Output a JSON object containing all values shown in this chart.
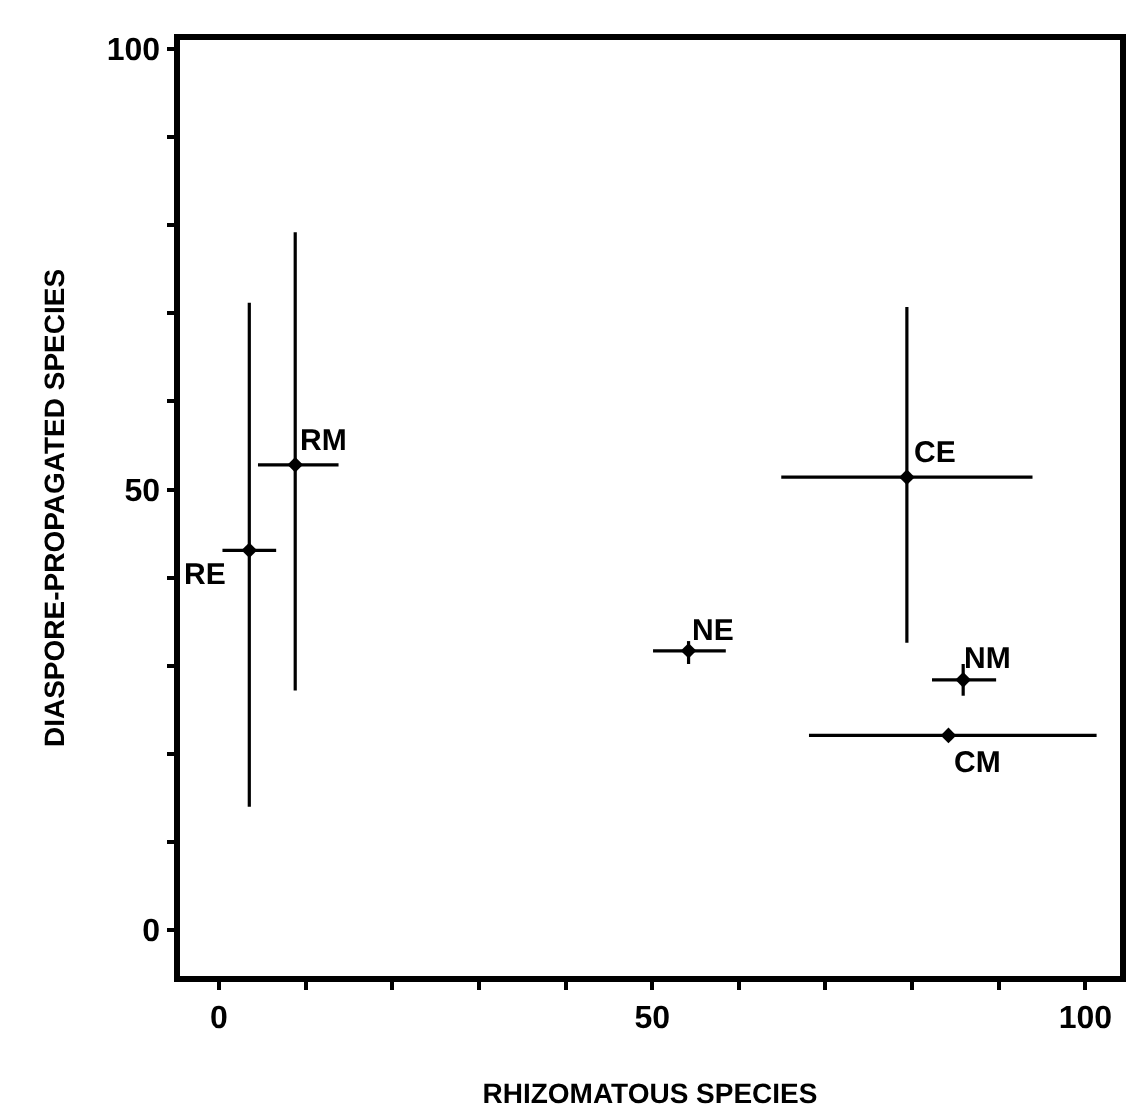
{
  "chart_data": {
    "type": "scatter",
    "xlabel": "RHIZOMATOUS SPECIES",
    "ylabel": "DIASPORE-PROPAGATED SPECIES",
    "x": [
      3.5,
      8.8,
      79.4,
      54.2,
      85.9,
      84.2
    ],
    "series": [
      {
        "color": "#000000",
        "values": [
          43.1,
          52.8,
          51.4,
          31.7,
          28.4,
          22.1
        ],
        "errors": [
          [
            14.0,
            71.2
          ],
          [
            27.2,
            79.2
          ],
          [
            32.6,
            70.7
          ],
          [
            30.2,
            32.8
          ],
          [
            26.6,
            30.2
          ],
          null
        ],
        "xerrors": [
          [
            0.4,
            6.6
          ],
          [
            4.5,
            13.8
          ],
          [
            64.9,
            93.9
          ],
          [
            50.1,
            58.5
          ],
          [
            82.3,
            89.7
          ],
          [
            68.1,
            101.3
          ]
        ]
      }
    ],
    "annotations": [
      {
        "text": "RE",
        "x": 3.5,
        "y": 43.1
      },
      {
        "text": "RM",
        "x": 8.8,
        "y": 52.8
      },
      {
        "text": "CE",
        "x": 79.4,
        "y": 51.4
      },
      {
        "text": "NE",
        "x": 54.2,
        "y": 31.7
      },
      {
        "text": "NM",
        "x": 85.9,
        "y": 28.4
      },
      {
        "text": "CM",
        "x": 84.2,
        "y": 22.1
      }
    ],
    "xlim": [
      -4.5,
      104
    ],
    "ylim": [
      -5.2,
      101
    ],
    "xticks": [
      0,
      {
        "value": 10,
        "label": null
      },
      {
        "value": 20,
        "label": null
      },
      {
        "value": 30,
        "label": null
      },
      {
        "value": 40,
        "label": null
      },
      50,
      {
        "value": 60,
        "label": null
      },
      {
        "value": 70,
        "label": null
      },
      {
        "value": 80,
        "label": null
      },
      {
        "value": 90,
        "label": null
      },
      100
    ],
    "yticks": [
      0,
      {
        "value": 10,
        "label": null
      },
      {
        "value": 20,
        "label": null
      },
      {
        "value": 30,
        "label": null
      },
      {
        "value": 40,
        "label": null
      },
      50,
      {
        "value": 60,
        "label": null
      },
      {
        "value": 70,
        "label": null
      },
      {
        "value": 80,
        "label": null
      },
      {
        "value": 90,
        "label": null
      },
      100
    ],
    "marker": "diamond"
  }
}
